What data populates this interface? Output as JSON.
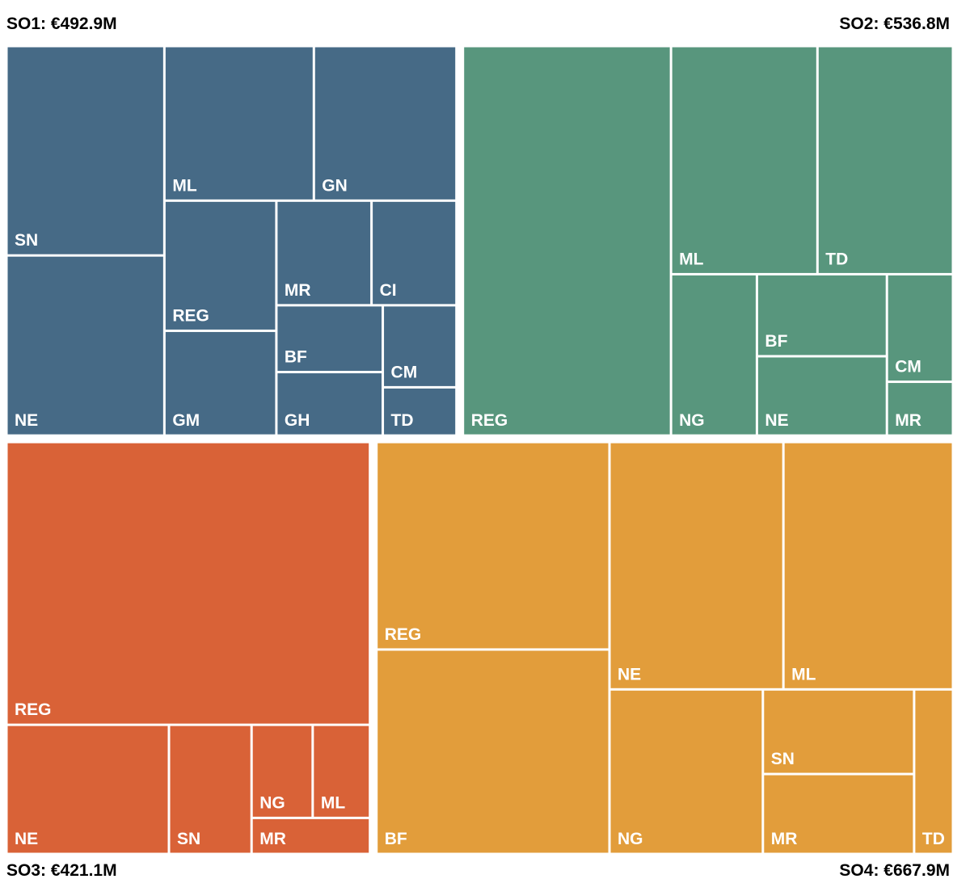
{
  "chart_data": {
    "type": "treemap",
    "groups": [
      {
        "name": "SO1",
        "value": 492.9,
        "label": "SO1: €492.9M",
        "color": "#466a86",
        "children": [
          {
            "name": "SN",
            "value": 93
          },
          {
            "name": "NE",
            "value": 80
          },
          {
            "name": "ML",
            "value": 65
          },
          {
            "name": "GN",
            "value": 62
          },
          {
            "name": "REG",
            "value": 41
          },
          {
            "name": "GM",
            "value": 33
          },
          {
            "name": "MR",
            "value": 28
          },
          {
            "name": "CI",
            "value": 25
          },
          {
            "name": "BF",
            "value": 20
          },
          {
            "name": "GH",
            "value": 19
          },
          {
            "name": "CM",
            "value": 17
          },
          {
            "name": "TD",
            "value": 10
          }
        ]
      },
      {
        "name": "SO2",
        "value": 536.8,
        "label": "SO2: €536.8M",
        "color": "#58967d",
        "children": [
          {
            "name": "REG",
            "value": 228
          },
          {
            "name": "ML",
            "value": 94
          },
          {
            "name": "TD",
            "value": 87
          },
          {
            "name": "NG",
            "value": 39
          },
          {
            "name": "BF",
            "value": 30
          },
          {
            "name": "NE",
            "value": 29
          },
          {
            "name": "CM",
            "value": 20
          },
          {
            "name": "MR",
            "value": 10
          }
        ]
      },
      {
        "name": "SO3",
        "value": 421.1,
        "label": "SO3: €421.1M",
        "color": "#d96237",
        "children": [
          {
            "name": "REG",
            "value": 289
          },
          {
            "name": "NE",
            "value": 59
          },
          {
            "name": "SN",
            "value": 30
          },
          {
            "name": "NG",
            "value": 16
          },
          {
            "name": "ML",
            "value": 15
          },
          {
            "name": "MR",
            "value": 12
          }
        ]
      },
      {
        "name": "SO4",
        "value": 667.9,
        "label": "SO4: €667.9M",
        "color": "#e29d3b",
        "children": [
          {
            "name": "REG",
            "value": 136
          },
          {
            "name": "BF",
            "value": 134
          },
          {
            "name": "NE",
            "value": 121
          },
          {
            "name": "ML",
            "value": 118
          },
          {
            "name": "NG",
            "value": 71
          },
          {
            "name": "SN",
            "value": 36
          },
          {
            "name": "MR",
            "value": 34
          },
          {
            "name": "TD",
            "value": 18
          }
        ]
      }
    ]
  }
}
